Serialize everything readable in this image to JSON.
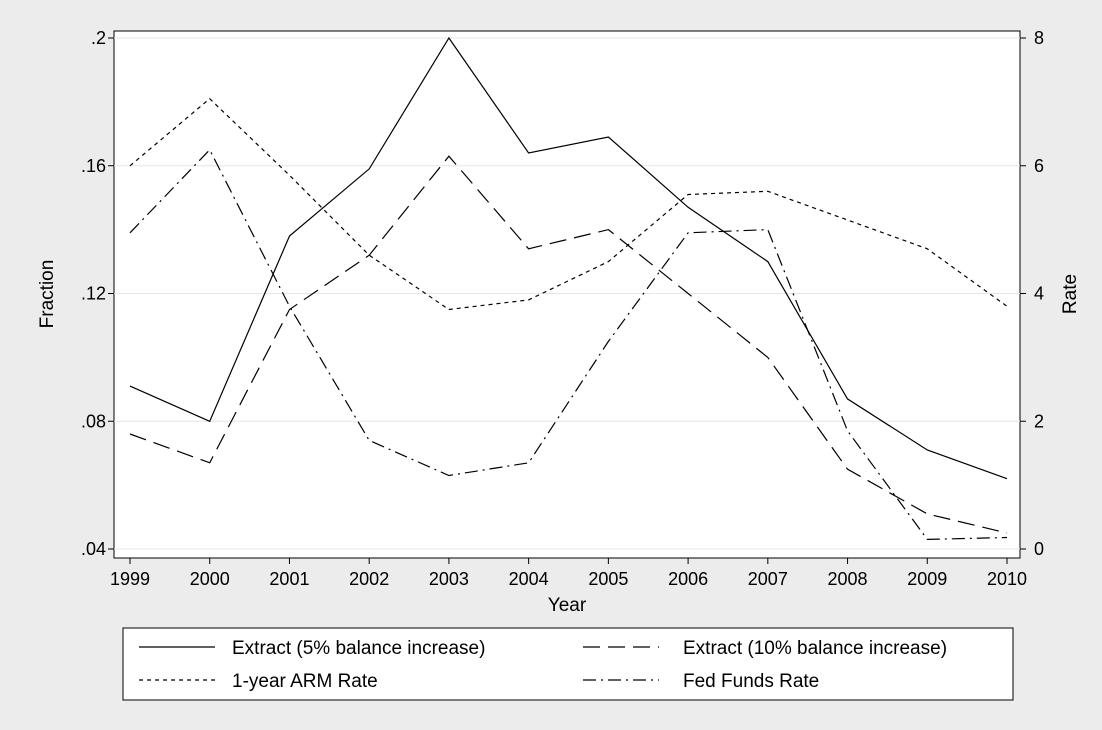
{
  "chart_data": {
    "type": "line",
    "title": "",
    "xlabel": "Year",
    "ylabel_left": "Fraction",
    "ylabel_right": "Rate",
    "x": [
      1999,
      2000,
      2001,
      2002,
      2003,
      2004,
      2005,
      2006,
      2007,
      2008,
      2009,
      2010
    ],
    "x_tick_labels": [
      "1999",
      "2000",
      "2001",
      "2002",
      "2003",
      "2004",
      "2005",
      "2006",
      "2007",
      "2008",
      "2009",
      "2010"
    ],
    "ylim_left": [
      0.04,
      0.2
    ],
    "y_ticks_left": [
      0.04,
      0.08,
      0.12,
      0.16,
      0.2
    ],
    "y_tick_labels_left": [
      ".04",
      ".08",
      ".12",
      ".16",
      ".2"
    ],
    "ylim_right": [
      0,
      8
    ],
    "y_ticks_right": [
      0,
      2,
      4,
      6,
      8
    ],
    "y_tick_labels_right": [
      "0",
      "2",
      "4",
      "6",
      "8"
    ],
    "grid": true,
    "legend_position": "bottom",
    "series": [
      {
        "name": "Extract (5% balance increase)",
        "axis": "left",
        "dash": "solid",
        "values": [
          0.091,
          0.08,
          0.138,
          0.159,
          0.2,
          0.164,
          0.169,
          0.147,
          0.13,
          0.087,
          0.071,
          0.062
        ]
      },
      {
        "name": "Extract (10% balance increase)",
        "axis": "left",
        "dash": "longdash",
        "values": [
          0.076,
          0.067,
          0.115,
          0.132,
          0.163,
          0.134,
          0.14,
          0.12,
          0.1,
          0.065,
          0.051,
          0.045
        ]
      },
      {
        "name": "1-year ARM Rate",
        "axis": "right",
        "dash": "shortdash",
        "values": [
          6.0,
          7.05,
          5.85,
          4.6,
          3.75,
          3.9,
          4.5,
          5.55,
          5.6,
          5.15,
          4.7,
          3.8
        ]
      },
      {
        "name": "Fed Funds Rate",
        "axis": "right",
        "dash": "dashdot",
        "values": [
          4.95,
          6.25,
          3.8,
          1.7,
          1.15,
          1.35,
          3.25,
          4.95,
          5.0,
          1.85,
          0.15,
          0.18
        ]
      }
    ]
  }
}
